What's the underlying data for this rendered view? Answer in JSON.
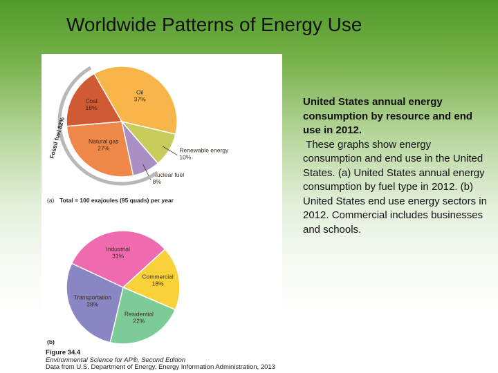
{
  "slide": {
    "title": "Worldwide Patterns of Energy Use",
    "description_bold": "United States annual energy consumption by resource and end use in 2012.",
    "description": " These graphs show energy consumption and end use in the United States. (a) United States annual energy consumption by fuel type in 2012. (b) United States end use energy sectors in 2012. Commercial includes businesses and schools."
  },
  "figure": {
    "bracket_label": "Fossil fuel 82%",
    "caption_number": "Figure 34.4",
    "caption_book": "Environmental Science for AP®, Second Edition",
    "caption_source": "Data from U.S. Department of Energy, Energy Information Administration, 2013"
  },
  "chart_data": [
    {
      "type": "pie",
      "panel_label": "(a)",
      "total_label": "Total = 100 exajoules (95 quads) per year",
      "slices": [
        {
          "name": "Oil",
          "value": 37,
          "label": "37%",
          "color": "#f7b54a"
        },
        {
          "name": "Renewable energy",
          "value": 10,
          "label": "10%",
          "color": "#c8cc5a"
        },
        {
          "name": "Nuclear fuel",
          "value": 8,
          "label": "8%",
          "color": "#a98fc4"
        },
        {
          "name": "Natural gas",
          "value": 27,
          "label": "27%",
          "color": "#ee8748"
        },
        {
          "name": "Coal",
          "value": 18,
          "label": "18%",
          "color": "#cf5a34"
        }
      ]
    },
    {
      "type": "pie",
      "panel_label": "(b)",
      "slices": [
        {
          "name": "Industrial",
          "value": 31,
          "label": "31%",
          "color": "#ef6aaf"
        },
        {
          "name": "Commercial",
          "value": 18,
          "label": "18%",
          "color": "#f9d23a"
        },
        {
          "name": "Residential",
          "value": 22,
          "label": "22%",
          "color": "#7dcc98"
        },
        {
          "name": "Transportation",
          "value": 28,
          "label": "28%",
          "color": "#8a85c3"
        }
      ]
    }
  ]
}
